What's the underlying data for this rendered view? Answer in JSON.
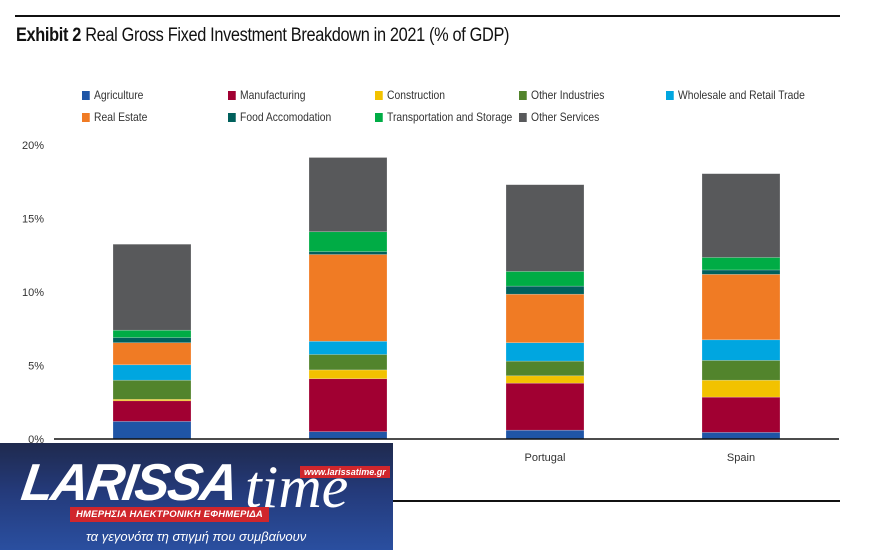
{
  "exhibit": {
    "label": "Exhibit 2",
    "title": "Real Gross Fixed Investment Breakdown in 2021 (% of GDP)"
  },
  "legend": [
    {
      "name": "Agriculture",
      "color": "#1f55a6"
    },
    {
      "name": "Manufacturing",
      "color": "#a10032"
    },
    {
      "name": "Construction",
      "color": "#f2c200"
    },
    {
      "name": "Other Industries",
      "color": "#52842c"
    },
    {
      "name": "Wholesale and Retail Trade",
      "color": "#00a6e0"
    },
    {
      "name": "Real Estate",
      "color": "#f07b24"
    },
    {
      "name": "Food Accomodation",
      "color": "#00605c"
    },
    {
      "name": "Transportation and Storage",
      "color": "#00ac45"
    },
    {
      "name": "Other Services",
      "color": "#58595b"
    }
  ],
  "chart_data": {
    "type": "bar",
    "stacked": true,
    "title": "Exhibit 2 Real Gross Fixed Investment Breakdown in 2021 (% of GDP)",
    "xlabel": "",
    "ylabel": "",
    "ylim": [
      0,
      20
    ],
    "yticks": [
      "0%",
      "5%",
      "10%",
      "15%",
      "20%"
    ],
    "ytick_values": [
      0,
      5,
      10,
      15,
      20
    ],
    "grid": false,
    "legend_position": "top",
    "categories": [
      "",
      "",
      "Portugal",
      "Spain"
    ],
    "series": [
      {
        "name": "Agriculture",
        "values": [
          1.2,
          0.5,
          0.6,
          0.45
        ]
      },
      {
        "name": "Manufacturing",
        "values": [
          1.4,
          3.6,
          3.2,
          2.4
        ]
      },
      {
        "name": "Construction",
        "values": [
          0.1,
          0.6,
          0.5,
          1.15
        ]
      },
      {
        "name": "Other Industries",
        "values": [
          1.3,
          1.05,
          1.0,
          1.35
        ]
      },
      {
        "name": "Wholesale and Retail Trade",
        "values": [
          1.05,
          0.9,
          1.25,
          1.4
        ]
      },
      {
        "name": "Real Estate",
        "values": [
          1.5,
          5.9,
          3.3,
          4.45
        ]
      },
      {
        "name": "Food Accomodation",
        "values": [
          0.35,
          0.2,
          0.55,
          0.3
        ]
      },
      {
        "name": "Transportation and Storage",
        "values": [
          0.5,
          1.35,
          1.0,
          0.85
        ]
      },
      {
        "name": "Other Services",
        "values": [
          5.85,
          5.05,
          5.9,
          5.7
        ]
      }
    ]
  },
  "overlay_logo": {
    "brand": "LARISSA",
    "brand_suffix": "time",
    "url": "www.larissatime.gr",
    "subtitle": "ΗΜΕΡΗΣΙΑ ΗΛΕΚΤΡΟΝΙΚΗ ΕΦΗΜΕΡΙΔΑ",
    "tagline": "τα γεγονότα τη στιγμή που συμβαίνουν"
  }
}
